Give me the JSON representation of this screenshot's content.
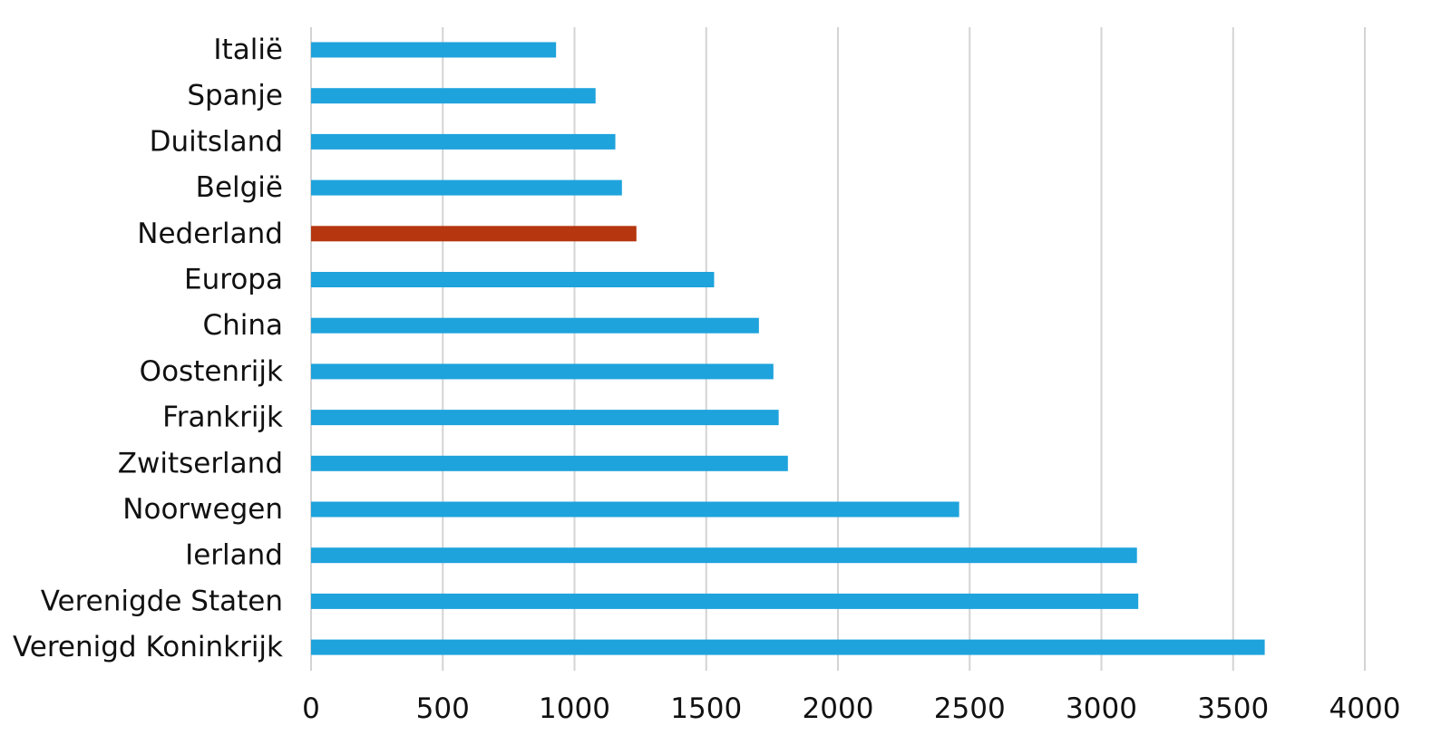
{
  "chart_data": {
    "type": "bar",
    "orientation": "horizontal",
    "title": "",
    "xlabel": "",
    "ylabel": "",
    "xlim": [
      0,
      4000
    ],
    "x_ticks": [
      0,
      500,
      1000,
      1500,
      2000,
      2500,
      3000,
      3500,
      4000
    ],
    "x_tick_labels": [
      "0",
      "500",
      "1000",
      "1500",
      "2000",
      "2500",
      "3000",
      "3500",
      "4000"
    ],
    "grid": "vertical",
    "legend": "none",
    "categories": [
      "Italië",
      "Spanje",
      "Duitsland",
      "België",
      "Nederland",
      "Europa",
      "China",
      "Oostenrijk",
      "Frankrijk",
      "Zwitserland",
      "Noorwegen",
      "Ierland",
      "Verenigde Staten",
      "Verenigd Koninkrijk"
    ],
    "values": [
      930,
      1080,
      1155,
      1180,
      1235,
      1530,
      1700,
      1755,
      1775,
      1810,
      2460,
      3135,
      3140,
      3620
    ],
    "bar_colors": [
      "#1ea3dc",
      "#1ea3dc",
      "#1ea3dc",
      "#1ea3dc",
      "#b5360f",
      "#1ea3dc",
      "#1ea3dc",
      "#1ea3dc",
      "#1ea3dc",
      "#1ea3dc",
      "#1ea3dc",
      "#1ea3dc",
      "#1ea3dc",
      "#1ea3dc"
    ],
    "colors": {
      "default_bar": "#1ea3dc",
      "highlight_bar": "#b5360f",
      "gridline": "#d4d4d4"
    }
  }
}
